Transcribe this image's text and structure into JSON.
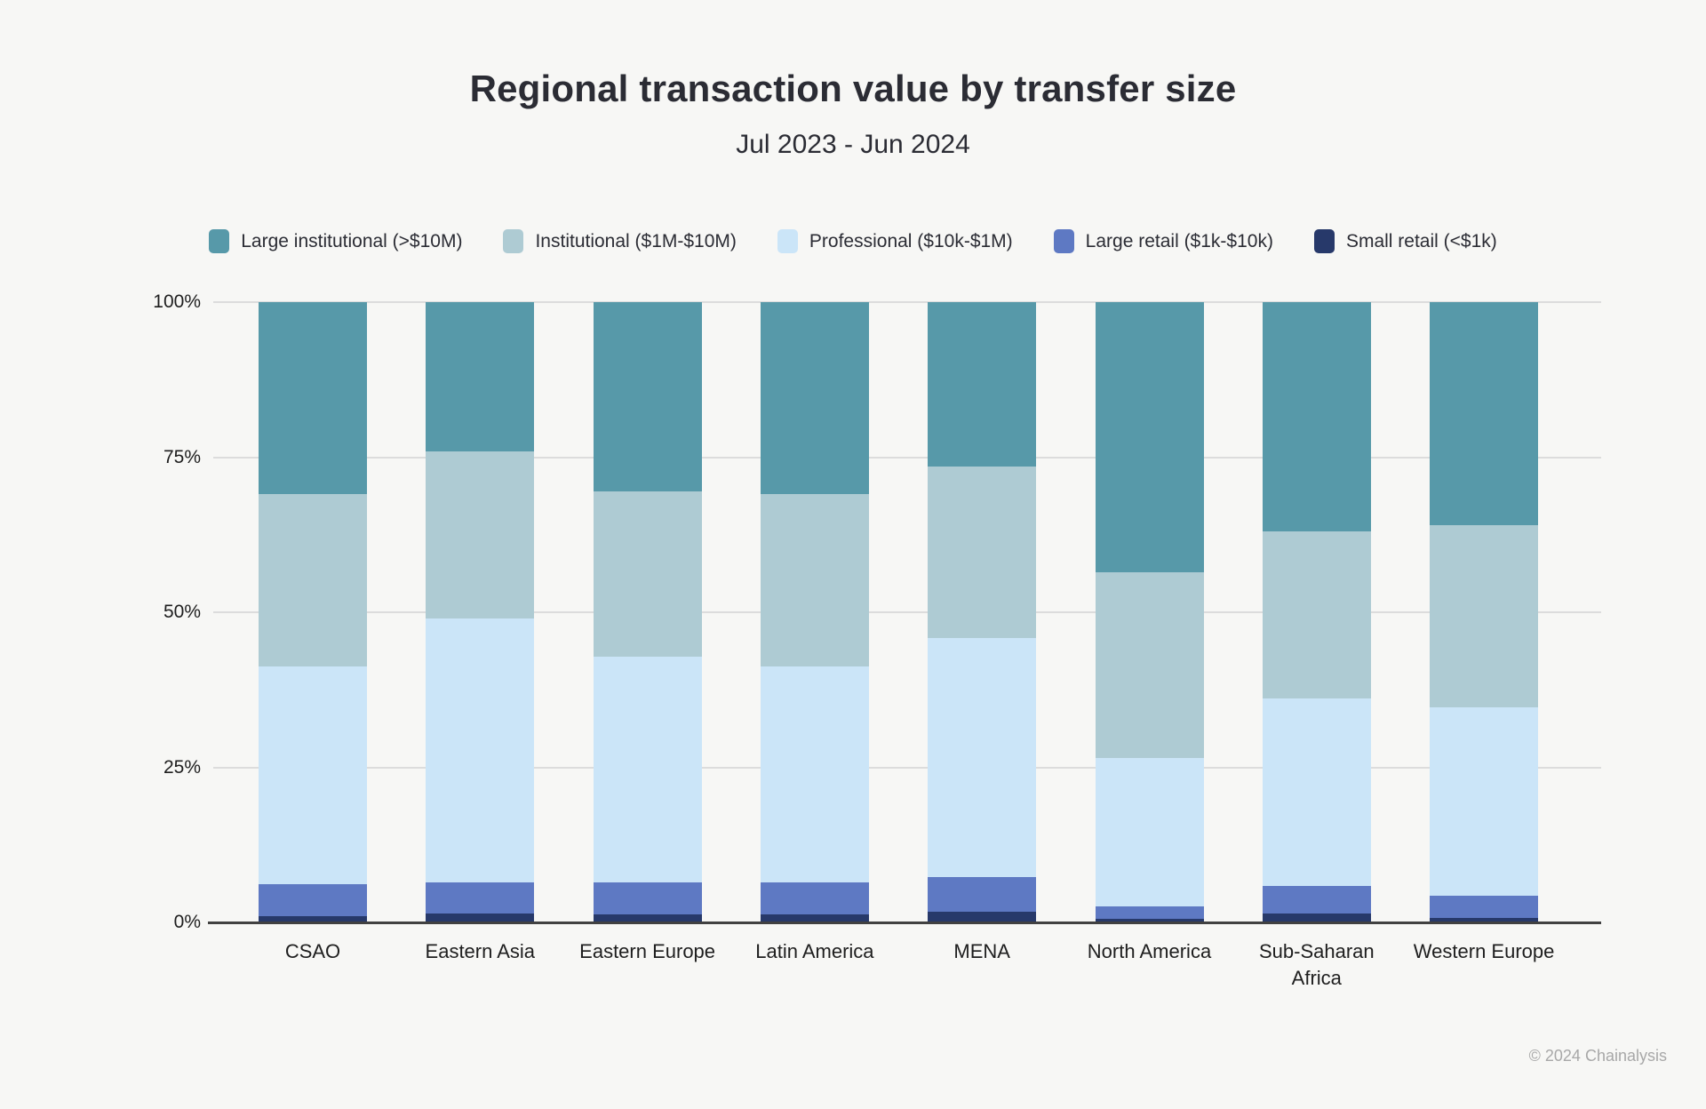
{
  "header": {
    "title": "Regional transaction value by transfer size",
    "subtitle": "Jul 2023 - Jun 2024"
  },
  "footer": {
    "copyright": "© 2024 Chainalysis"
  },
  "colors": {
    "background": "#f7f7f5",
    "gridline": "#dcdcdc",
    "axis_line": "#414141",
    "text": "#2b2c34",
    "footer_text": "#a8a8a8"
  },
  "chart_data": {
    "type": "bar",
    "stacked": true,
    "percent": true,
    "title": "Regional transaction value by transfer size",
    "subtitle": "Jul 2023 - Jun 2024",
    "legend_position": "top",
    "grid": true,
    "categories": [
      "CSAO",
      "Eastern Asia",
      "Eastern Europe",
      "Latin America",
      "MENA",
      "North America",
      "Sub-Saharan Africa",
      "Western Europe"
    ],
    "series": [
      {
        "name": "Large institutional (>$10M)",
        "color": "#5799a9",
        "values": [
          31.0,
          24.0,
          30.5,
          31.0,
          26.5,
          43.5,
          37.0,
          36.0
        ]
      },
      {
        "name": "Institutional ($1M-$10M)",
        "color": "#aecbd3",
        "values": [
          27.7,
          27.0,
          26.7,
          27.8,
          27.7,
          30.0,
          26.9,
          29.3
        ]
      },
      {
        "name": "Professional ($10k-$1M)",
        "color": "#cbe5f8",
        "values": [
          35.2,
          42.5,
          36.3,
          34.7,
          38.5,
          23.9,
          30.3,
          30.4
        ]
      },
      {
        "name": "Large retail ($1k-$10k)",
        "color": "#5e79c3",
        "values": [
          5.1,
          5.1,
          5.2,
          5.2,
          5.6,
          2.1,
          4.4,
          3.6
        ]
      },
      {
        "name": "Small retail (<$1k)",
        "color": "#27396a",
        "values": [
          1.0,
          1.4,
          1.3,
          1.3,
          1.7,
          0.5,
          1.4,
          0.7
        ]
      }
    ],
    "y_axis": {
      "min": 0,
      "max": 100,
      "ticks": [
        {
          "label": "0%",
          "value": 0
        },
        {
          "label": "25%",
          "value": 25
        },
        {
          "label": "50%",
          "value": 50
        },
        {
          "label": "75%",
          "value": 75
        },
        {
          "label": "100%",
          "value": 100
        }
      ]
    }
  }
}
